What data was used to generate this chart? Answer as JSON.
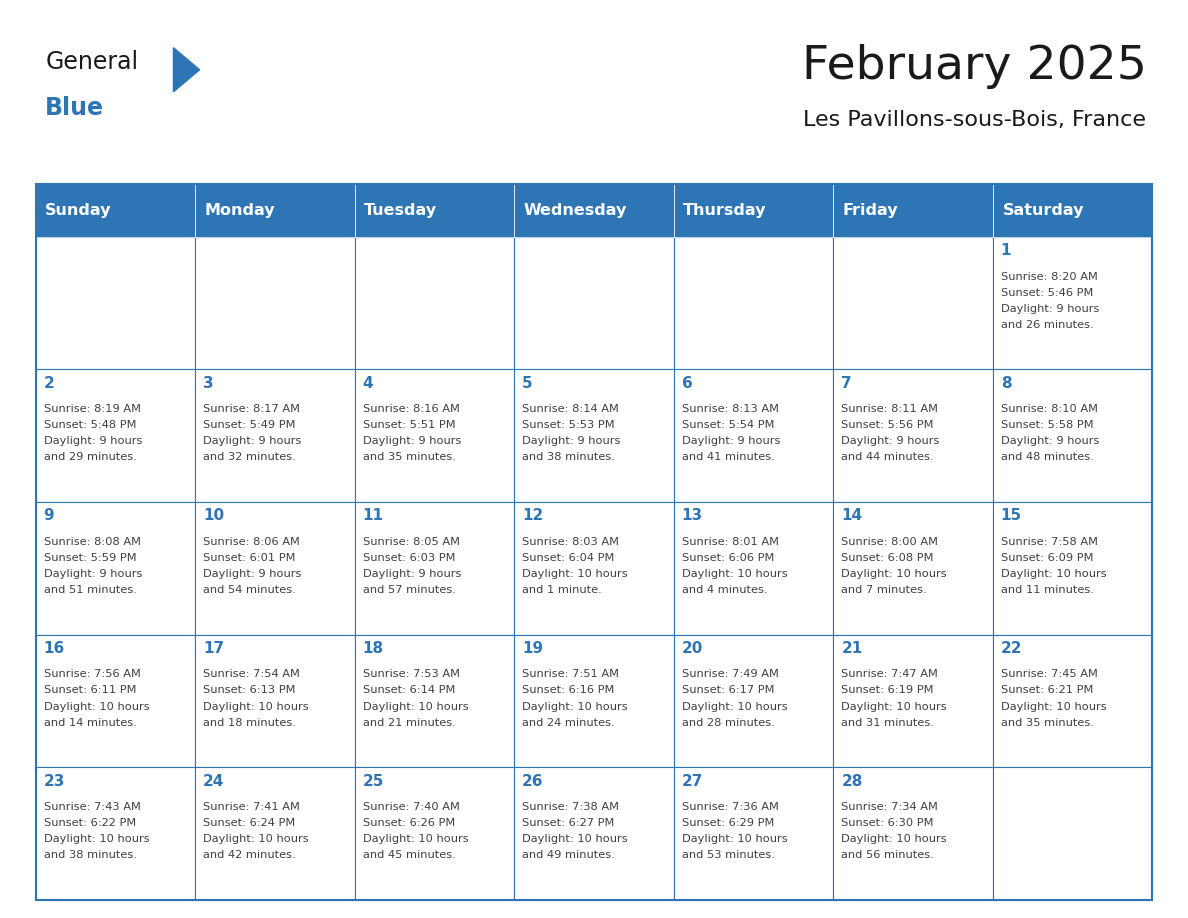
{
  "title": "February 2025",
  "subtitle": "Les Pavillons-sous-Bois, France",
  "days_of_week": [
    "Sunday",
    "Monday",
    "Tuesday",
    "Wednesday",
    "Thursday",
    "Friday",
    "Saturday"
  ],
  "header_bg": "#2E75B6",
  "header_text": "#FFFFFF",
  "cell_bg_white": "#FFFFFF",
  "border_color": "#2E75B6",
  "text_color": "#404040",
  "day_number_color": "#2E75B6",
  "title_color": "#1A1A1A",
  "logo_general_color": "#1A1A1A",
  "logo_blue_color": "#2E75B6",
  "weeks": [
    [
      {
        "day": null,
        "info": ""
      },
      {
        "day": null,
        "info": ""
      },
      {
        "day": null,
        "info": ""
      },
      {
        "day": null,
        "info": ""
      },
      {
        "day": null,
        "info": ""
      },
      {
        "day": null,
        "info": ""
      },
      {
        "day": 1,
        "info": "Sunrise: 8:20 AM\nSunset: 5:46 PM\nDaylight: 9 hours\nand 26 minutes."
      }
    ],
    [
      {
        "day": 2,
        "info": "Sunrise: 8:19 AM\nSunset: 5:48 PM\nDaylight: 9 hours\nand 29 minutes."
      },
      {
        "day": 3,
        "info": "Sunrise: 8:17 AM\nSunset: 5:49 PM\nDaylight: 9 hours\nand 32 minutes."
      },
      {
        "day": 4,
        "info": "Sunrise: 8:16 AM\nSunset: 5:51 PM\nDaylight: 9 hours\nand 35 minutes."
      },
      {
        "day": 5,
        "info": "Sunrise: 8:14 AM\nSunset: 5:53 PM\nDaylight: 9 hours\nand 38 minutes."
      },
      {
        "day": 6,
        "info": "Sunrise: 8:13 AM\nSunset: 5:54 PM\nDaylight: 9 hours\nand 41 minutes."
      },
      {
        "day": 7,
        "info": "Sunrise: 8:11 AM\nSunset: 5:56 PM\nDaylight: 9 hours\nand 44 minutes."
      },
      {
        "day": 8,
        "info": "Sunrise: 8:10 AM\nSunset: 5:58 PM\nDaylight: 9 hours\nand 48 minutes."
      }
    ],
    [
      {
        "day": 9,
        "info": "Sunrise: 8:08 AM\nSunset: 5:59 PM\nDaylight: 9 hours\nand 51 minutes."
      },
      {
        "day": 10,
        "info": "Sunrise: 8:06 AM\nSunset: 6:01 PM\nDaylight: 9 hours\nand 54 minutes."
      },
      {
        "day": 11,
        "info": "Sunrise: 8:05 AM\nSunset: 6:03 PM\nDaylight: 9 hours\nand 57 minutes."
      },
      {
        "day": 12,
        "info": "Sunrise: 8:03 AM\nSunset: 6:04 PM\nDaylight: 10 hours\nand 1 minute."
      },
      {
        "day": 13,
        "info": "Sunrise: 8:01 AM\nSunset: 6:06 PM\nDaylight: 10 hours\nand 4 minutes."
      },
      {
        "day": 14,
        "info": "Sunrise: 8:00 AM\nSunset: 6:08 PM\nDaylight: 10 hours\nand 7 minutes."
      },
      {
        "day": 15,
        "info": "Sunrise: 7:58 AM\nSunset: 6:09 PM\nDaylight: 10 hours\nand 11 minutes."
      }
    ],
    [
      {
        "day": 16,
        "info": "Sunrise: 7:56 AM\nSunset: 6:11 PM\nDaylight: 10 hours\nand 14 minutes."
      },
      {
        "day": 17,
        "info": "Sunrise: 7:54 AM\nSunset: 6:13 PM\nDaylight: 10 hours\nand 18 minutes."
      },
      {
        "day": 18,
        "info": "Sunrise: 7:53 AM\nSunset: 6:14 PM\nDaylight: 10 hours\nand 21 minutes."
      },
      {
        "day": 19,
        "info": "Sunrise: 7:51 AM\nSunset: 6:16 PM\nDaylight: 10 hours\nand 24 minutes."
      },
      {
        "day": 20,
        "info": "Sunrise: 7:49 AM\nSunset: 6:17 PM\nDaylight: 10 hours\nand 28 minutes."
      },
      {
        "day": 21,
        "info": "Sunrise: 7:47 AM\nSunset: 6:19 PM\nDaylight: 10 hours\nand 31 minutes."
      },
      {
        "day": 22,
        "info": "Sunrise: 7:45 AM\nSunset: 6:21 PM\nDaylight: 10 hours\nand 35 minutes."
      }
    ],
    [
      {
        "day": 23,
        "info": "Sunrise: 7:43 AM\nSunset: 6:22 PM\nDaylight: 10 hours\nand 38 minutes."
      },
      {
        "day": 24,
        "info": "Sunrise: 7:41 AM\nSunset: 6:24 PM\nDaylight: 10 hours\nand 42 minutes."
      },
      {
        "day": 25,
        "info": "Sunrise: 7:40 AM\nSunset: 6:26 PM\nDaylight: 10 hours\nand 45 minutes."
      },
      {
        "day": 26,
        "info": "Sunrise: 7:38 AM\nSunset: 6:27 PM\nDaylight: 10 hours\nand 49 minutes."
      },
      {
        "day": 27,
        "info": "Sunrise: 7:36 AM\nSunset: 6:29 PM\nDaylight: 10 hours\nand 53 minutes."
      },
      {
        "day": 28,
        "info": "Sunrise: 7:34 AM\nSunset: 6:30 PM\nDaylight: 10 hours\nand 56 minutes."
      },
      {
        "day": null,
        "info": ""
      }
    ]
  ]
}
